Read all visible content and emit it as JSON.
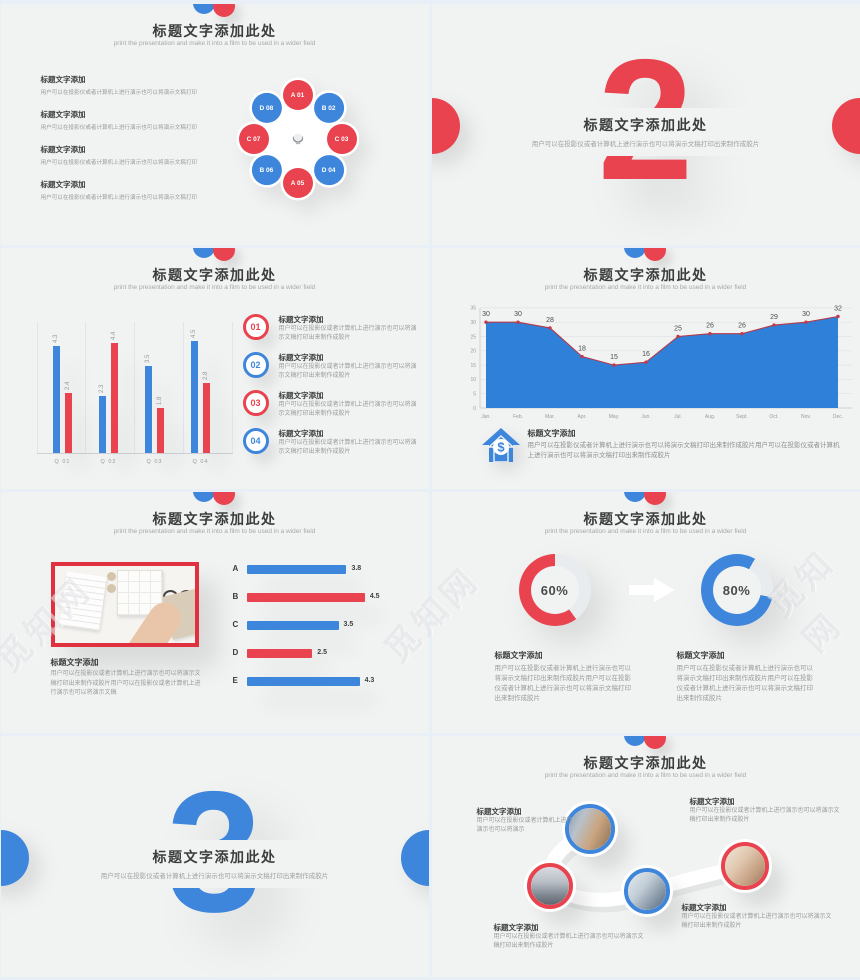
{
  "watermark": {
    "text": "觅知网"
  },
  "colors": {
    "red": "#e8434e",
    "blue": "#3e86db",
    "area_fill": "#2f80d8",
    "line_red": "#b5394a",
    "slide_bg": "#f1f2f2"
  },
  "slides": {
    "s1": {
      "title": "标题文字添加此处",
      "subtitle": "print the presentation and make it into a film to be used in a wider field",
      "items": [
        {
          "heading": "标题文字添加",
          "body": "用户可以在投影仪或者计算机上进行演示也可以将演示文稿打印"
        },
        {
          "heading": "标题文字添加",
          "body": "用户可以在投影仪或者计算机上进行演示也可以将演示文稿打印"
        },
        {
          "heading": "标题文字添加",
          "body": "用户可以在投影仪或者计算机上进行演示也可以将演示文稿打印"
        },
        {
          "heading": "标题文字添加",
          "body": "用户可以在投影仪或者计算机上进行演示也可以将演示文稿打印"
        }
      ],
      "petals": [
        {
          "label": "A 01",
          "color": "red"
        },
        {
          "label": "B 02",
          "color": "blue"
        },
        {
          "label": "C 03",
          "color": "red"
        },
        {
          "label": "D 04",
          "color": "blue"
        },
        {
          "label": "A 05",
          "color": "red"
        },
        {
          "label": "B 06",
          "color": "blue"
        },
        {
          "label": "C 07",
          "color": "red"
        },
        {
          "label": "D 08",
          "color": "blue"
        }
      ]
    },
    "s2": {
      "number": "2",
      "title": "标题文字添加此处",
      "subtitle_zh": "用户可以在投影仪或者计算机上进行演示也可以将演示文稿打印出来制作成胶片"
    },
    "s3": {
      "title": "标题文字添加此处",
      "subtitle": "print the presentation and make it into a film to be used in a wider field",
      "chart": {
        "type": "bar",
        "categories": [
          "Q 01",
          "Q 02",
          "Q 03",
          "Q 04"
        ],
        "series": [
          {
            "name": "series-blue",
            "color": "blue",
            "values": [
              4.3,
              2.3,
              3.5,
              4.5
            ]
          },
          {
            "name": "series-red",
            "color": "red",
            "values": [
              2.4,
              4.4,
              1.8,
              2.8
            ]
          }
        ],
        "ylim": [
          0,
          5
        ]
      },
      "list": [
        {
          "num": "01",
          "color": "red",
          "heading": "标题文字添加",
          "body": "用户可以在投影仪或者计算机上进行演示也可以将演示文稿打印出来制作成胶片"
        },
        {
          "num": "02",
          "color": "blue",
          "heading": "标题文字添加",
          "body": "用户可以在投影仪或者计算机上进行演示也可以将演示文稿打印出来制作成胶片"
        },
        {
          "num": "03",
          "color": "red",
          "heading": "标题文字添加",
          "body": "用户可以在投影仪或者计算机上进行演示也可以将演示文稿打印出来制作成胶片"
        },
        {
          "num": "04",
          "color": "blue",
          "heading": "标题文字添加",
          "body": "用户可以在投影仪或者计算机上进行演示也可以将演示文稿打印出来制作成胶片"
        }
      ]
    },
    "s4": {
      "title": "标题文字添加此处",
      "subtitle": "print the presentation and make it into a film to be used in a wider field",
      "chart": {
        "type": "area",
        "x": [
          "Jan.",
          "Feb.",
          "Mar.",
          "Apr.",
          "May.",
          "Jun.",
          "Jul.",
          "Aug.",
          "Sept.",
          "Oct.",
          "Nov.",
          "Dec."
        ],
        "values": [
          30,
          30,
          28,
          18,
          15,
          16,
          25,
          26,
          26,
          29,
          30,
          32
        ],
        "yticks": [
          35,
          30,
          25,
          20,
          15,
          10,
          5,
          0
        ],
        "ylim": [
          0,
          35
        ]
      },
      "callout": {
        "heading": "标题文字添加",
        "body": "用户可以在投影仪或者计算机上进行演示也可以将演示文稿打印出来制作成胶片用户可以在投影仪或者计算机上进行演示也可以将演示文稿打印出来制作成胶片"
      }
    },
    "s5": {
      "title": "标题文字添加此处",
      "subtitle": "print the presentation and make it into a film to be used in a wider field",
      "caption": {
        "heading": "标题文字添加",
        "body": "用户可以在投影仪或者计算机上进行演示也可以将演示文稿打印出来制作成胶片用户可以在投影仪或者计算机上进行演示也可以将演示文稿"
      },
      "chart": {
        "type": "hbar",
        "categories": [
          "A",
          "B",
          "C",
          "D",
          "E"
        ],
        "values": [
          3.8,
          4.5,
          3.5,
          2.5,
          4.3
        ],
        "colors": [
          "blue",
          "red",
          "blue",
          "red",
          "blue"
        ],
        "xlim": [
          0,
          5
        ]
      }
    },
    "s6": {
      "title": "标题文字添加此处",
      "subtitle": "print the presentation and make it into a film to be used in a wider field",
      "gauges": [
        {
          "percent": "60%",
          "value": 60,
          "color": "red",
          "heading": "标题文字添加",
          "body": "用户可以在投影仪或者计算机上进行演示也可以将演示文稿打印出来制作成胶片用户可以在投影仪或者计算机上进行演示也可以将演示文稿打印出来制作成胶片"
        },
        {
          "percent": "80%",
          "value": 80,
          "color": "blue",
          "heading": "标题文字添加",
          "body": "用户可以在投影仪或者计算机上进行演示也可以将演示文稿打印出来制作成胶片用户可以在投影仪或者计算机上进行演示也可以将演示文稿打印出来制作成胶片"
        }
      ]
    },
    "s7": {
      "number": "3",
      "title": "标题文字添加此处",
      "subtitle_zh": "用户可以在投影仪或者计算机上进行演示也可以将演示文稿打印出来制作成胶片"
    },
    "s8": {
      "title": "标题文字添加此处",
      "subtitle": "print the presentation and make it into a film to be used in a wider field",
      "nodes": [
        {
          "border": "blue",
          "heading": "标题文字添加",
          "body": "用户可以在投影仪或者计算机上进行演示也可以将演示"
        },
        {
          "border": "red",
          "heading": "标题文字添加",
          "body": "用户可以在投影仪或者计算机上进行演示也可以将演示文稿打印出来制作成胶片"
        },
        {
          "border": "blue",
          "heading": "标题文字添加",
          "body": "用户可以在投影仪或者计算机上进行演示也可以将演示文稿打印出来制作成胶片"
        },
        {
          "border": "red",
          "heading": "标题文字添加",
          "body": "用户可以在投影仪或者计算机上进行演示也可以将演示文稿打印出来制作成胶片"
        }
      ]
    }
  }
}
